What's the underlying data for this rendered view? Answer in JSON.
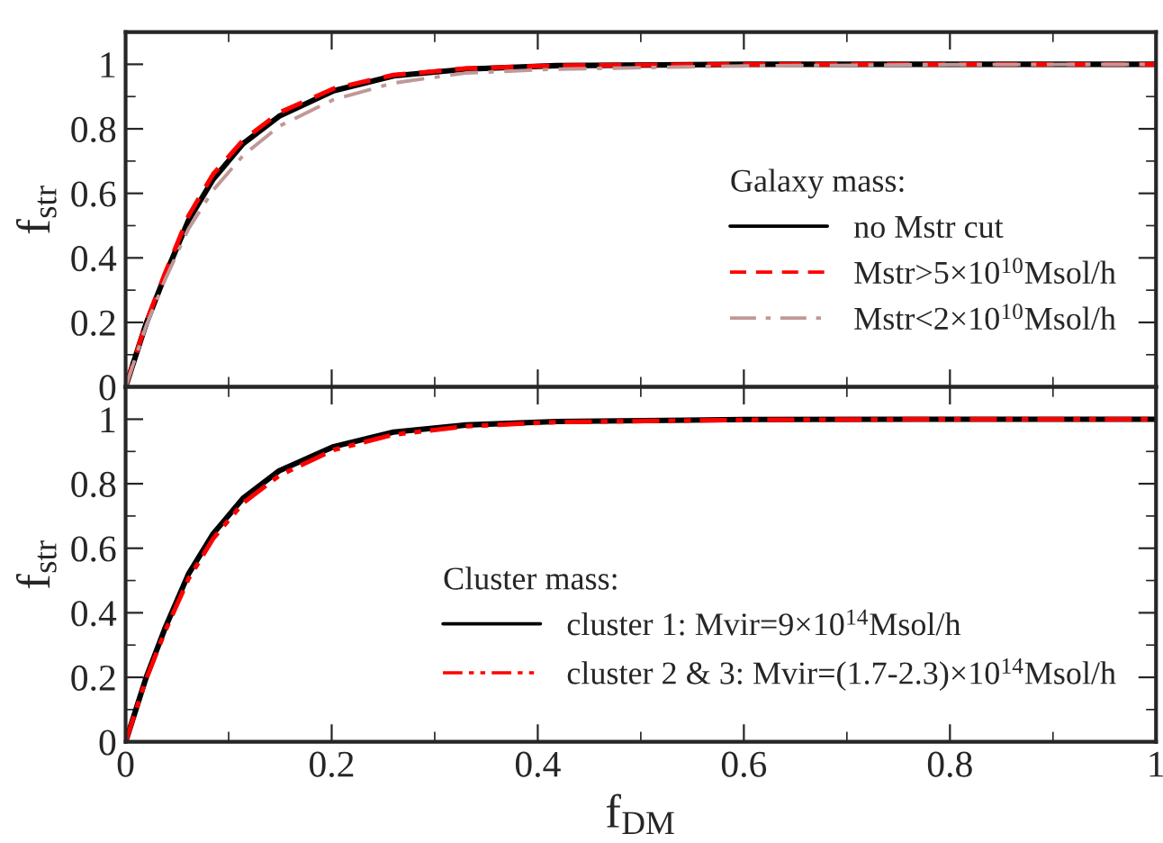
{
  "chart_data": [
    {
      "type": "line",
      "ylabel": "f$_{str}$",
      "legend_title": "Galaxy mass:",
      "legend": "lower right",
      "tick_labels": "y",
      "xlim": [
        0,
        1
      ],
      "xticks": [
        0,
        0.2,
        0.4,
        0.6,
        0.8,
        1
      ],
      "ylim": [
        0,
        1.1
      ],
      "yticks": [
        0,
        0.2,
        0.4,
        0.6,
        0.8,
        1
      ],
      "grid": false,
      "x": [
        0,
        0.02,
        0.038,
        0.061,
        0.085,
        0.114,
        0.149,
        0.202,
        0.26,
        0.33,
        0.418,
        0.6,
        0.8,
        1
      ],
      "series": [
        {
          "name": "no Mstr cut",
          "color": "#000000",
          "line_style": "solid",
          "values": [
            0,
            0.197,
            0.343,
            0.516,
            0.644,
            0.754,
            0.839,
            0.918,
            0.964,
            0.985,
            0.996,
            1,
            1,
            1
          ]
        },
        {
          "name": "Mstr>5×10$^{10}$Msol/h",
          "color": "#ff0000",
          "line_style": "dashed",
          "values": [
            0,
            0.2,
            0.35,
            0.53,
            0.66,
            0.765,
            0.85,
            0.925,
            0.967,
            0.987,
            0.996,
            1,
            1,
            1
          ]
        },
        {
          "name": "Mstr<2×10$^{10}$Msol/h",
          "color": "#c09898",
          "line_style": "dashdot",
          "values": [
            0,
            0.19,
            0.33,
            0.49,
            0.61,
            0.717,
            0.808,
            0.891,
            0.942,
            0.973,
            0.985,
            0.995,
            0.999,
            1
          ]
        }
      ]
    },
    {
      "type": "line",
      "xlabel": "f$_{DM}$",
      "ylabel": "f$_{str}$",
      "legend_title": "Cluster mass:",
      "legend": "lower right",
      "xlim": [
        0,
        1
      ],
      "xticks": [
        0,
        0.2,
        0.4,
        0.6,
        0.8,
        1
      ],
      "ylim": [
        0,
        1.1
      ],
      "yticks": [
        0,
        0.2,
        0.4,
        0.6,
        0.8,
        1
      ],
      "grid": false,
      "x": [
        0,
        0.02,
        0.038,
        0.061,
        0.085,
        0.114,
        0.149,
        0.202,
        0.26,
        0.33,
        0.418,
        0.6,
        0.8,
        1
      ],
      "series": [
        {
          "name": "cluster 1: Mvir=9×10$^{14}$Msol/h",
          "color": "#000000",
          "line_style": "solid",
          "values": [
            0,
            0.2,
            0.35,
            0.52,
            0.645,
            0.755,
            0.84,
            0.915,
            0.96,
            0.982,
            0.993,
            0.999,
            1,
            1
          ]
        },
        {
          "name": "cluster 2 & 3: Mvir=(1.7-2.3)×10$^{14}$Msol/h",
          "color": "#ff0000",
          "line_style": "dashdotdot",
          "values": [
            0,
            0.195,
            0.34,
            0.505,
            0.63,
            0.74,
            0.825,
            0.905,
            0.952,
            0.978,
            0.991,
            0.998,
            1,
            1
          ]
        }
      ]
    }
  ]
}
